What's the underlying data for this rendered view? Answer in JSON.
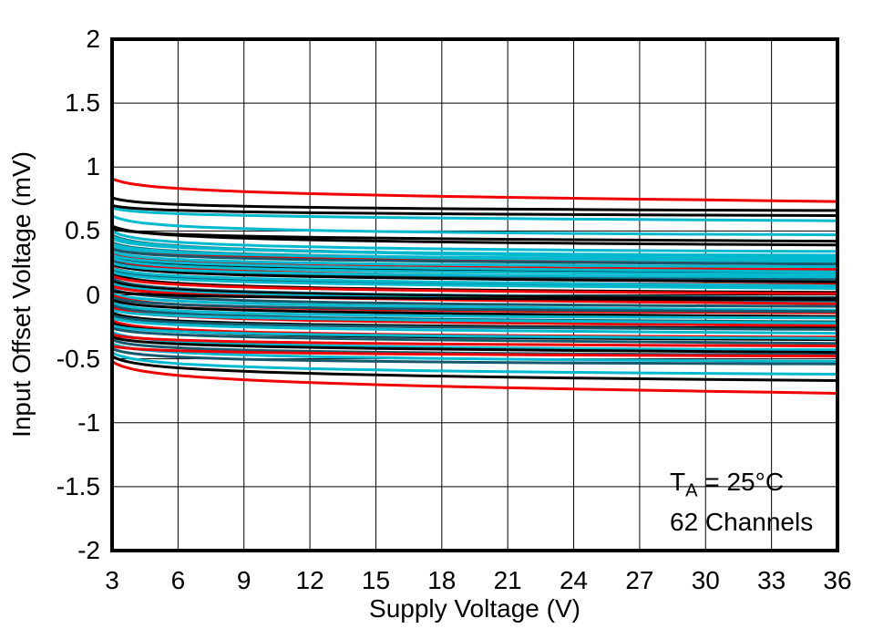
{
  "figure": {
    "background": "#ffffff",
    "annotation": {
      "t_prefix": "T",
      "t_sub": "A",
      "t_rest": " = 25°C",
      "line2": "62 Channels"
    }
  },
  "chart_data": {
    "type": "line",
    "title": "",
    "xlabel": "Supply Voltage (V)",
    "ylabel": "Input Offset Voltage (mV)",
    "xlim": [
      3,
      36
    ],
    "ylim": [
      -2,
      2
    ],
    "x_ticks": [
      3,
      6,
      9,
      12,
      15,
      18,
      21,
      24,
      27,
      30,
      33,
      36
    ],
    "x_tick_labels": [
      "3",
      "6",
      "9",
      "12",
      "15",
      "18",
      "21",
      "24",
      "27",
      "30",
      "33",
      "36"
    ],
    "y_ticks": [
      2,
      1.5,
      1,
      0.5,
      0,
      -0.5,
      -1,
      -1.5,
      -2
    ],
    "y_tick_labels": [
      "2",
      "1.5",
      "1",
      "0.5",
      "0",
      "-0.5",
      "-1",
      "-1.5",
      "-2"
    ],
    "grid": true,
    "legend": "none",
    "n_channels": 62,
    "palette": {
      "k": "#000000",
      "r": "#f00000",
      "c": "#00b9cf",
      "t": "#16596c"
    },
    "channel_format": [
      "color_key",
      "vos_mV_at_3V",
      "vos_mV_at_36V"
    ],
    "channels": [
      [
        "r",
        0.91,
        0.73
      ],
      [
        "k",
        0.76,
        0.66
      ],
      [
        "k",
        0.7,
        0.62
      ],
      [
        "c",
        0.68,
        0.58
      ],
      [
        "c",
        0.62,
        0.47
      ],
      [
        "k",
        0.54,
        0.39
      ],
      [
        "k",
        0.52,
        0.42
      ],
      [
        "c",
        0.5,
        0.34
      ],
      [
        "t",
        0.47,
        0.3
      ],
      [
        "c",
        0.46,
        0.29
      ],
      [
        "r",
        0.37,
        0.25
      ],
      [
        "c",
        0.44,
        0.31
      ],
      [
        "t",
        0.41,
        0.27
      ],
      [
        "c",
        0.4,
        0.26
      ],
      [
        "r",
        0.33,
        0.2
      ],
      [
        "c",
        0.38,
        0.28
      ],
      [
        "t",
        0.36,
        0.24
      ],
      [
        "k",
        0.3,
        0.17
      ],
      [
        "c",
        0.34,
        0.22
      ],
      [
        "r",
        0.28,
        0.13
      ],
      [
        "c",
        0.31,
        0.18
      ],
      [
        "t",
        0.27,
        0.12
      ],
      [
        "c",
        0.29,
        0.16
      ],
      [
        "k",
        0.24,
        0.1
      ],
      [
        "r",
        0.22,
        0.08
      ],
      [
        "c",
        0.25,
        0.14
      ],
      [
        "t",
        0.2,
        0.06
      ],
      [
        "c",
        0.21,
        0.07
      ],
      [
        "k",
        0.17,
        0.02
      ],
      [
        "r",
        0.15,
        0.01
      ],
      [
        "c",
        0.18,
        0.05
      ],
      [
        "t",
        0.13,
        -0.02
      ],
      [
        "k",
        0.11,
        -0.03
      ],
      [
        "c",
        0.09,
        -0.05
      ],
      [
        "r",
        0.07,
        -0.07
      ],
      [
        "t",
        0.05,
        -0.09
      ],
      [
        "k",
        0.03,
        -0.04
      ],
      [
        "c",
        0.01,
        -0.12
      ],
      [
        "r",
        0.0,
        -0.14
      ],
      [
        "t",
        -0.02,
        -0.13
      ],
      [
        "k",
        -0.04,
        -0.17
      ],
      [
        "c",
        -0.06,
        -0.18
      ],
      [
        "t",
        -0.08,
        -0.21
      ],
      [
        "r",
        -0.1,
        -0.24
      ],
      [
        "c",
        -0.12,
        -0.22
      ],
      [
        "k",
        -0.14,
        -0.26
      ],
      [
        "t",
        -0.16,
        -0.27
      ],
      [
        "c",
        -0.18,
        -0.3
      ],
      [
        "r",
        -0.2,
        -0.33
      ],
      [
        "k",
        -0.22,
        -0.35
      ],
      [
        "c",
        -0.24,
        -0.34
      ],
      [
        "t",
        -0.26,
        -0.38
      ],
      [
        "c",
        -0.29,
        -0.43
      ],
      [
        "r",
        -0.31,
        -0.4
      ],
      [
        "k",
        -0.33,
        -0.45
      ],
      [
        "t",
        -0.35,
        -0.47
      ],
      [
        "c",
        -0.38,
        -0.52
      ],
      [
        "r",
        -0.4,
        -0.48
      ],
      [
        "t",
        -0.42,
        -0.54
      ],
      [
        "c",
        -0.45,
        -0.62
      ],
      [
        "k",
        -0.48,
        -0.67
      ],
      [
        "r",
        -0.52,
        -0.77
      ]
    ]
  }
}
